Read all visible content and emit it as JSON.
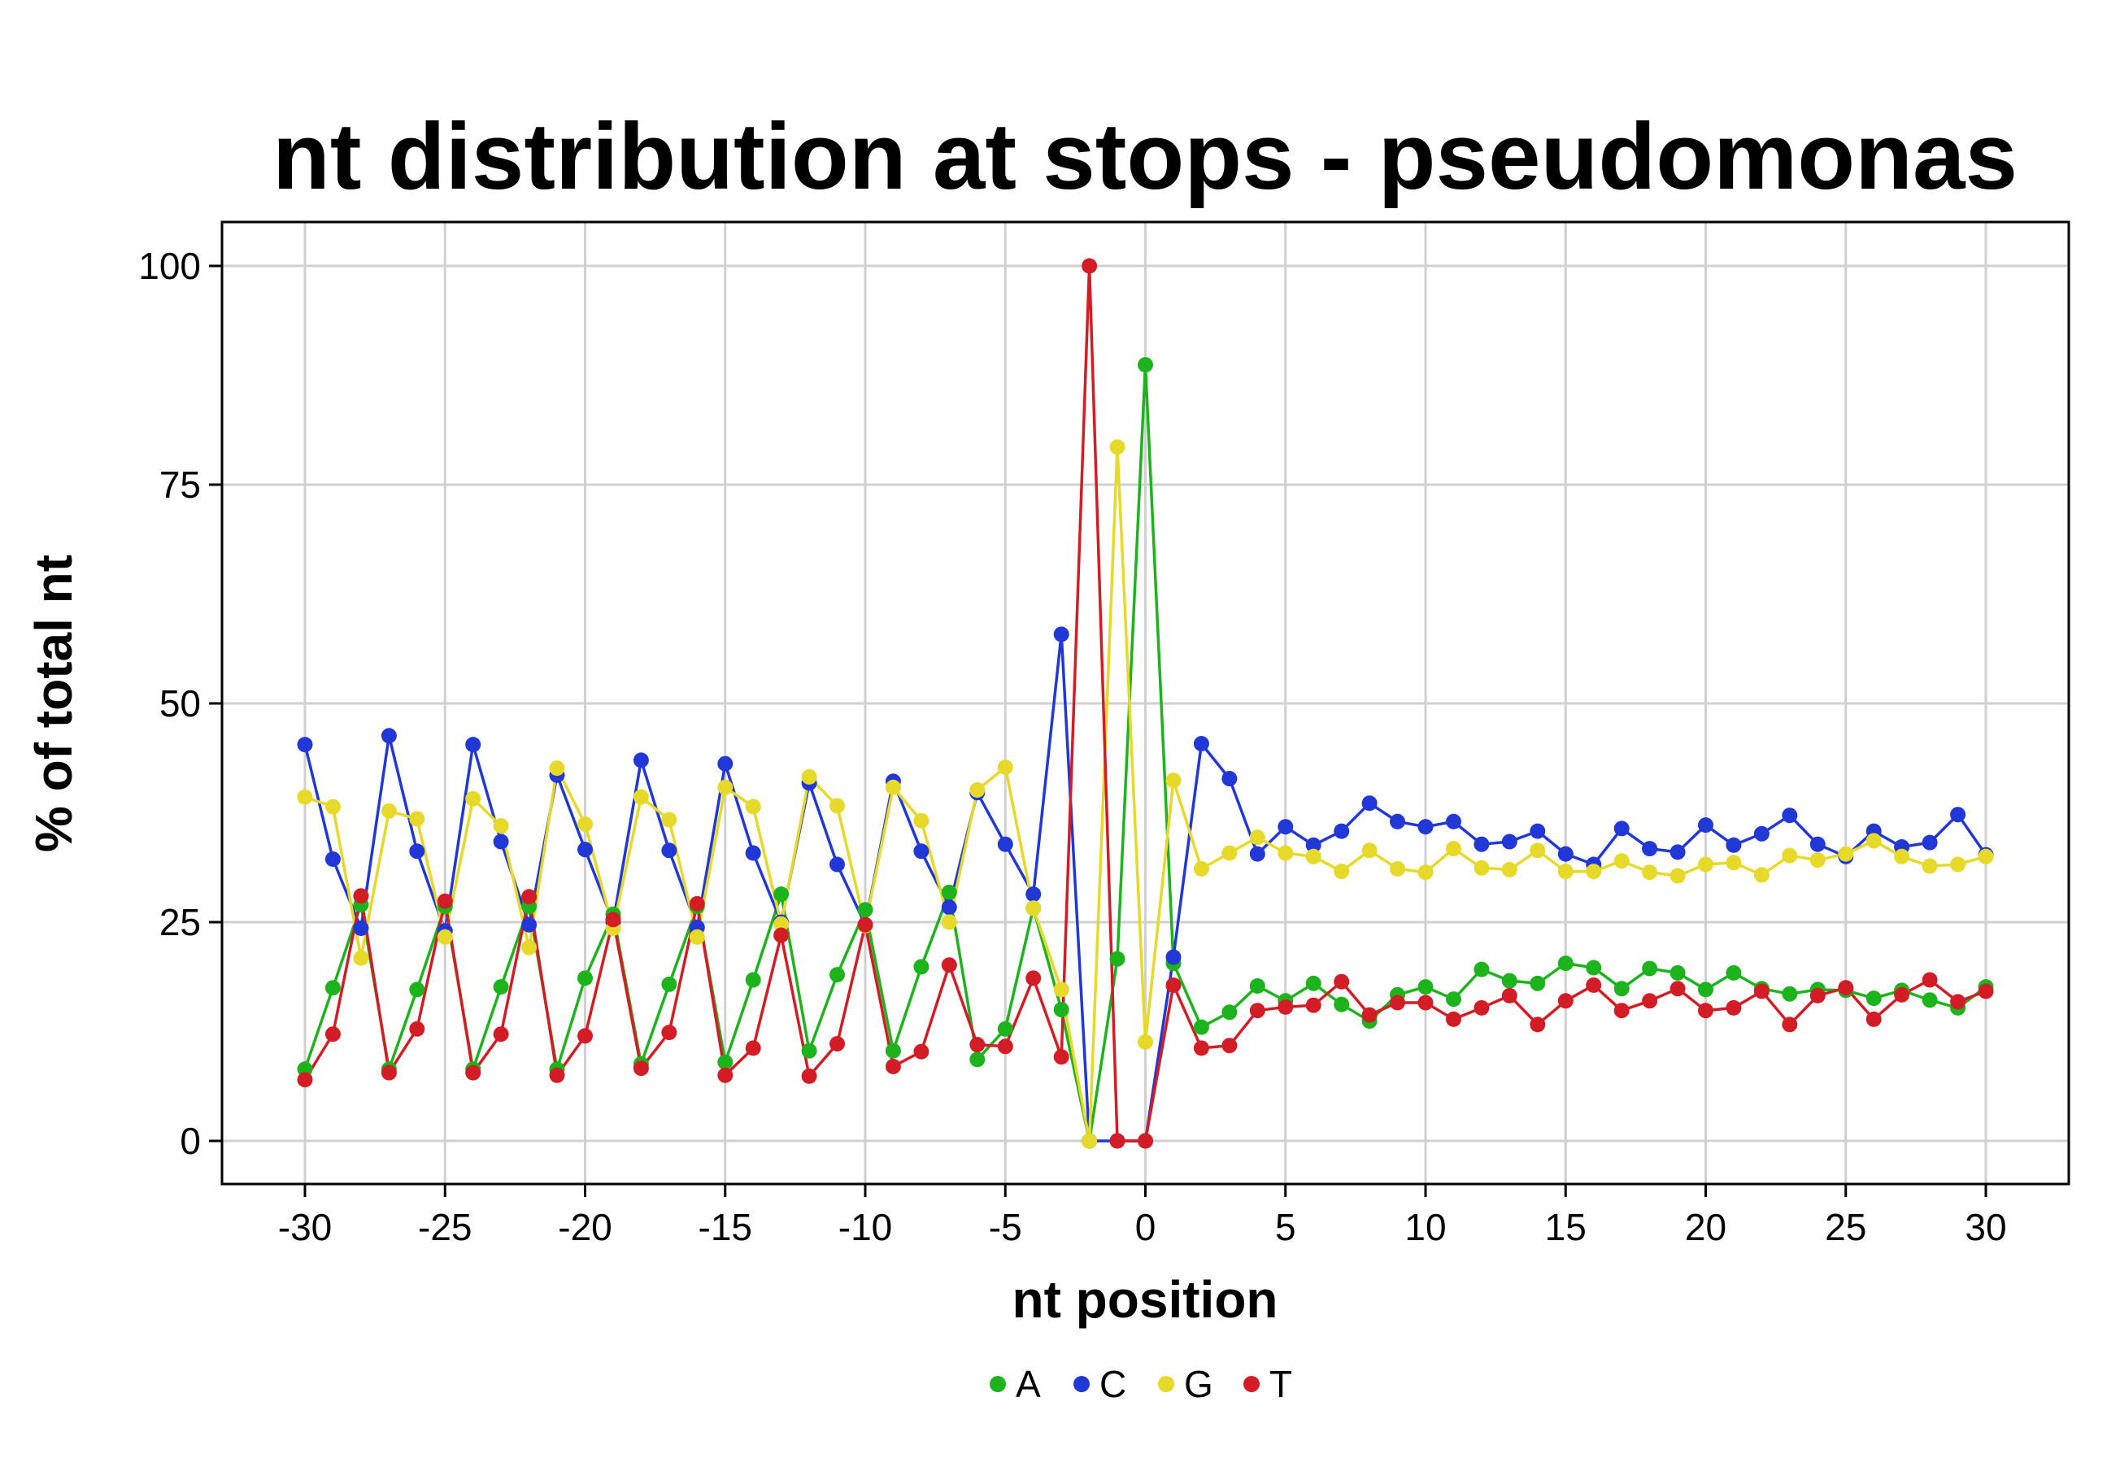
{
  "chart_data": {
    "type": "line",
    "title": "nt distribution at stops - pseudomonas",
    "xlabel": "nt position",
    "ylabel": "% of total nt",
    "xlim": [
      -30,
      30
    ],
    "ylim": [
      0,
      100
    ],
    "x_ticks": [
      -30,
      -25,
      -20,
      -15,
      -10,
      -5,
      0,
      5,
      10,
      15,
      20,
      25,
      30
    ],
    "x_tick_labels": [
      "-30",
      "-25",
      "-20",
      "-15",
      "-10",
      "-5",
      "0",
      "5",
      "10",
      "15",
      "20",
      "25",
      "30"
    ],
    "y_ticks": [
      0,
      25,
      50,
      75,
      100
    ],
    "y_tick_labels": [
      "0",
      "25",
      "50",
      "75",
      "100"
    ],
    "grid": true,
    "legend_position": "bottom",
    "x": [
      -30,
      -29,
      -28,
      -27,
      -26,
      -25,
      -24,
      -23,
      -22,
      -21,
      -20,
      -19,
      -18,
      -17,
      -16,
      -15,
      -14,
      -13,
      -12,
      -11,
      -10,
      -9,
      -8,
      -7,
      -6,
      -5,
      -4,
      -3,
      -2,
      -1,
      0,
      1,
      2,
      3,
      4,
      5,
      6,
      7,
      8,
      9,
      10,
      11,
      12,
      13,
      14,
      15,
      16,
      17,
      18,
      19,
      20,
      21,
      22,
      23,
      24,
      25,
      26,
      27,
      28,
      29,
      30
    ],
    "series": [
      {
        "name": "A",
        "color": "#1db31d",
        "values": [
          8.2,
          17.5,
          27,
          8.2,
          17.3,
          26.8,
          8.2,
          17.6,
          26.8,
          8.2,
          18.6,
          25.9,
          8.8,
          17.9,
          26.8,
          9.0,
          18.4,
          28.2,
          10.3,
          19.0,
          26.4,
          10.3,
          19.9,
          28.4,
          9.3,
          12.8,
          26.6,
          15.0,
          0,
          20.8,
          88.7,
          20.3,
          13.0,
          14.7,
          17.7,
          16.0,
          18.0,
          15.6,
          13.7,
          16.7,
          17.6,
          16.2,
          19.6,
          18.3,
          18.0,
          20.3,
          19.8,
          17.4,
          19.7,
          19.2,
          17.3,
          19.2,
          17.4,
          16.8,
          17.3,
          17.2,
          16.3,
          17.2,
          16.1,
          15.2,
          17.6
        ]
      },
      {
        "name": "C",
        "color": "#2138d6",
        "values": [
          45.3,
          32.2,
          24.3,
          46.3,
          33.1,
          24.0,
          45.3,
          34.2,
          24.7,
          41.8,
          33.3,
          25.0,
          43.5,
          33.2,
          24.4,
          43.1,
          32.9,
          25.0,
          40.9,
          31.6,
          24.7,
          41.1,
          33.1,
          26.7,
          39.8,
          33.9,
          28.2,
          57.9,
          0,
          0,
          0,
          21.0,
          45.4,
          41.4,
          32.8,
          35.9,
          33.8,
          35.4,
          38.6,
          36.5,
          35.9,
          36.5,
          33.9,
          34.2,
          35.4,
          32.8,
          31.6,
          35.7,
          33.4,
          33.0,
          36.1,
          33.8,
          35.1,
          37.2,
          33.9,
          32.5,
          35.4,
          33.6,
          34.1,
          37.3,
          32.7
        ]
      },
      {
        "name": "G",
        "color": "#e6d92a",
        "values": [
          39.3,
          38.2,
          20.9,
          37.7,
          36.8,
          23.3,
          39.1,
          36.0,
          22.1,
          42.6,
          36.2,
          24.3,
          39.3,
          36.7,
          23.3,
          40.4,
          38.2,
          24.8,
          41.6,
          38.3,
          24.6,
          40.4,
          36.6,
          25.0,
          40.1,
          42.7,
          26.6,
          17.3,
          0,
          79.3,
          11.3,
          41.2,
          31.1,
          32.9,
          34.7,
          32.9,
          32.5,
          30.8,
          33.2,
          31.1,
          30.7,
          33.4,
          31.2,
          31.0,
          33.2,
          30.8,
          30.8,
          32.0,
          30.7,
          30.3,
          31.6,
          31.8,
          30.4,
          32.6,
          32.1,
          32.8,
          34.3,
          32.5,
          31.4,
          31.6,
          32.5
        ]
      },
      {
        "name": "T",
        "color": "#d31d26",
        "values": [
          7.0,
          12.2,
          28.0,
          7.8,
          12.8,
          27.4,
          7.8,
          12.2,
          27.9,
          7.5,
          12.0,
          25.3,
          8.3,
          12.4,
          27.1,
          7.5,
          10.6,
          23.5,
          7.4,
          11.1,
          24.7,
          8.5,
          10.2,
          20.1,
          11.0,
          10.8,
          18.6,
          9.6,
          100,
          0,
          0,
          17.8,
          10.6,
          10.9,
          14.9,
          15.3,
          15.5,
          18.2,
          14.4,
          15.8,
          15.8,
          13.9,
          15.2,
          16.6,
          13.3,
          16.0,
          17.8,
          14.9,
          16.0,
          17.4,
          14.9,
          15.2,
          17.1,
          13.3,
          16.6,
          17.5,
          13.9,
          16.7,
          18.4,
          15.9,
          17.1
        ]
      }
    ]
  }
}
